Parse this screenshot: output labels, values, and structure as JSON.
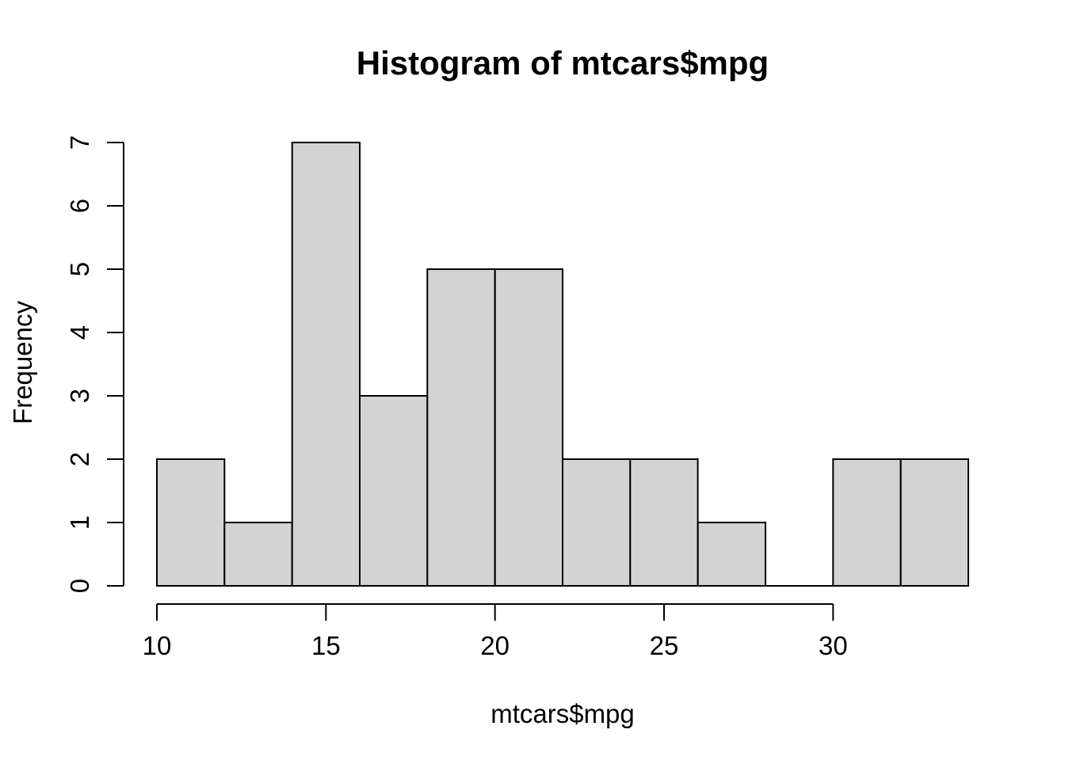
{
  "chart_data": {
    "type": "bar",
    "subtype": "histogram",
    "title": "Histogram of mtcars$mpg",
    "xlabel": "mtcars$mpg",
    "ylabel": "Frequency",
    "breaks": [
      10,
      12,
      14,
      16,
      18,
      20,
      22,
      24,
      26,
      28,
      30,
      32,
      34
    ],
    "counts": [
      2,
      1,
      7,
      3,
      5,
      5,
      2,
      2,
      1,
      0,
      2,
      2
    ],
    "x_ticks": [
      10,
      15,
      20,
      25,
      30
    ],
    "y_ticks": [
      0,
      1,
      2,
      3,
      4,
      5,
      6,
      7
    ],
    "xlim": [
      10,
      34
    ],
    "ylim": [
      0,
      7
    ],
    "legend": "none",
    "grid": "off",
    "colors": {
      "bar_fill": "#d3d3d3",
      "bar_stroke": "#000000",
      "axis": "#000000",
      "text": "#000000",
      "background": "#ffffff"
    }
  }
}
